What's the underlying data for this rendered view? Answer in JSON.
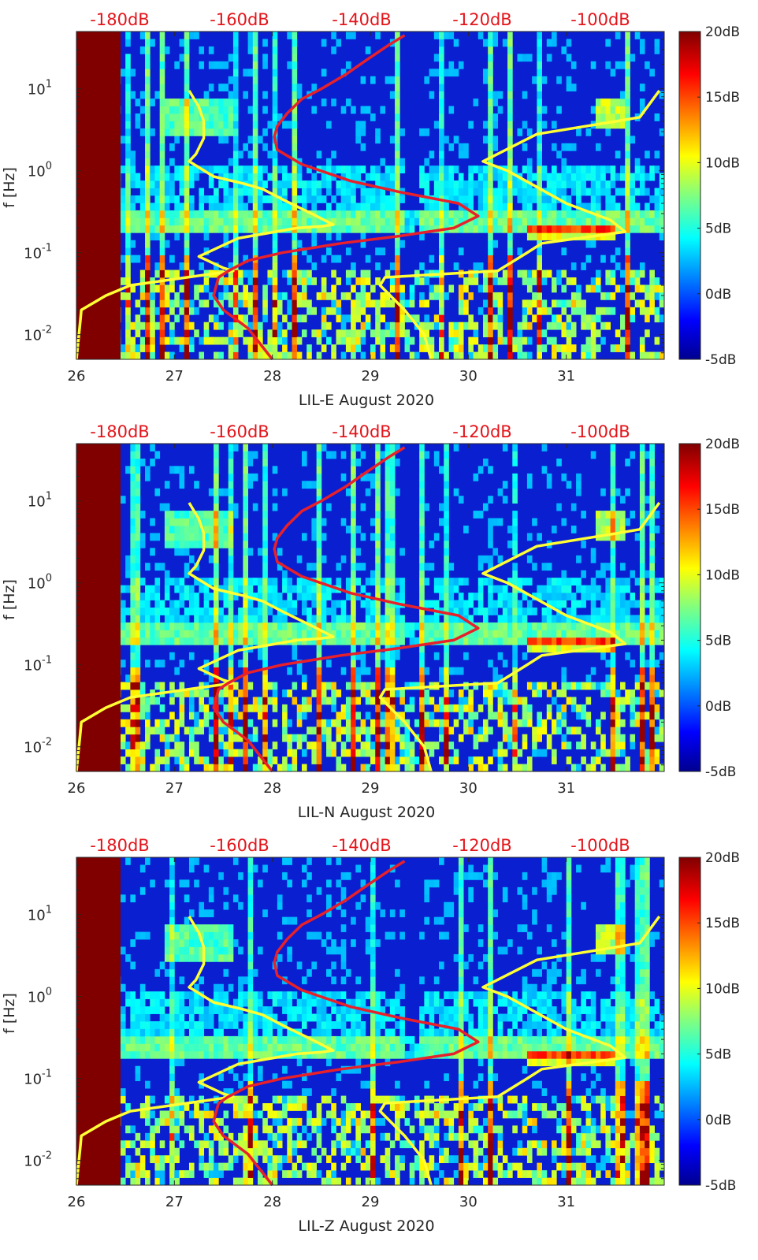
{
  "chart_data": [
    {
      "type": "heatmap",
      "title": "",
      "xlabel": "LIL-E August 2020",
      "ylabel": "f [Hz]",
      "x_ticks": [
        26,
        27,
        28,
        29,
        30,
        31
      ],
      "xlim": [
        26,
        32
      ],
      "ylim": [
        0.005,
        50
      ],
      "y_scale": "log",
      "y_ticks": [
        {
          "value": 0.01,
          "base": "10",
          "exp": "-2"
        },
        {
          "value": 0.1,
          "base": "10",
          "exp": "-1"
        },
        {
          "value": 1,
          "base": "10",
          "exp": "0"
        },
        {
          "value": 10,
          "base": "10",
          "exp": "1"
        }
      ],
      "top_ticks": [
        "-180dB",
        "-160dB",
        "-140dB",
        "-120dB",
        "-100dB"
      ],
      "top_tick_values": [
        -180,
        -160,
        -140,
        -120,
        -100
      ],
      "colorbar": {
        "labels": [
          "-5dB",
          "0dB",
          "5dB",
          "10dB",
          "15dB",
          "20dB"
        ],
        "range": [
          -5,
          20
        ]
      },
      "series": [
        {
          "color": "#ffff33",
          "points": [
            [
              26.0,
              0.005
            ],
            [
              26.04,
              0.015
            ],
            [
              26.05,
              0.02
            ],
            [
              26.3,
              0.03
            ],
            [
              26.55,
              0.04
            ],
            [
              27.6,
              0.06
            ],
            [
              27.5,
              0.065
            ],
            [
              27.25,
              0.09
            ],
            [
              27.65,
              0.15
            ],
            [
              28.25,
              0.2
            ],
            [
              28.5,
              0.21
            ],
            [
              28.62,
              0.22
            ],
            [
              28.4,
              0.3
            ],
            [
              28.1,
              0.45
            ],
            [
              27.9,
              0.6
            ],
            [
              27.7,
              0.7
            ],
            [
              27.4,
              0.85
            ],
            [
              27.15,
              1.3
            ],
            [
              27.22,
              1.6
            ],
            [
              27.3,
              2.5
            ],
            [
              27.3,
              4
            ],
            [
              27.25,
              6
            ],
            [
              27.15,
              9.5
            ]
          ]
        },
        {
          "color": "#ffff33",
          "points": [
            [
              29.62,
              0.005
            ],
            [
              29.55,
              0.01
            ],
            [
              29.35,
              0.02
            ],
            [
              29.1,
              0.04
            ],
            [
              29.15,
              0.05
            ],
            [
              30.3,
              0.06
            ],
            [
              30.6,
              0.1
            ],
            [
              30.75,
              0.13
            ],
            [
              31.6,
              0.18
            ],
            [
              31.45,
              0.25
            ],
            [
              31.0,
              0.4
            ],
            [
              30.4,
              1.0
            ],
            [
              30.15,
              1.3
            ],
            [
              30.7,
              2.8
            ],
            [
              31.5,
              4
            ],
            [
              31.75,
              4.5
            ],
            [
              31.95,
              9.5
            ]
          ]
        },
        {
          "color": "#e8202a",
          "points": [
            [
              28.0,
              0.005
            ],
            [
              27.75,
              0.012
            ],
            [
              27.5,
              0.02
            ],
            [
              27.4,
              0.03
            ],
            [
              27.45,
              0.05
            ],
            [
              27.55,
              0.06
            ],
            [
              27.75,
              0.08
            ],
            [
              28.1,
              0.1
            ],
            [
              28.7,
              0.13
            ],
            [
              29.3,
              0.16
            ],
            [
              29.85,
              0.2
            ],
            [
              30.1,
              0.28
            ],
            [
              29.9,
              0.4
            ],
            [
              29.3,
              0.55
            ],
            [
              28.8,
              0.75
            ],
            [
              28.3,
              1.2
            ],
            [
              28.05,
              1.8
            ],
            [
              28.02,
              2.6
            ],
            [
              28.05,
              3.5
            ],
            [
              28.15,
              5
            ],
            [
              28.3,
              7.5
            ],
            [
              28.5,
              10
            ],
            [
              28.75,
              15
            ],
            [
              28.95,
              22
            ],
            [
              29.2,
              35
            ],
            [
              29.35,
              45
            ]
          ]
        }
      ]
    },
    {
      "type": "heatmap",
      "title": "",
      "xlabel": "LIL-N August 2020",
      "ylabel": "f [Hz]",
      "x_ticks": [
        26,
        27,
        28,
        29,
        30,
        31
      ],
      "xlim": [
        26,
        32
      ],
      "ylim": [
        0.005,
        50
      ],
      "y_scale": "log",
      "y_ticks": [
        {
          "value": 0.01,
          "base": "10",
          "exp": "-2"
        },
        {
          "value": 0.1,
          "base": "10",
          "exp": "-1"
        },
        {
          "value": 1,
          "base": "10",
          "exp": "0"
        },
        {
          "value": 10,
          "base": "10",
          "exp": "1"
        }
      ],
      "top_ticks": [
        "-180dB",
        "-160dB",
        "-140dB",
        "-120dB",
        "-100dB"
      ],
      "top_tick_values": [
        -180,
        -160,
        -140,
        -120,
        -100
      ],
      "colorbar": {
        "labels": [
          "-5dB",
          "0dB",
          "5dB",
          "10dB",
          "15dB",
          "20dB"
        ],
        "range": [
          -5,
          20
        ]
      },
      "series": [
        {
          "color": "#ffff33",
          "points": [
            [
              26.0,
              0.005
            ],
            [
              26.04,
              0.015
            ],
            [
              26.05,
              0.02
            ],
            [
              26.3,
              0.03
            ],
            [
              26.55,
              0.04
            ],
            [
              27.6,
              0.06
            ],
            [
              27.5,
              0.065
            ],
            [
              27.25,
              0.09
            ],
            [
              27.65,
              0.15
            ],
            [
              28.25,
              0.2
            ],
            [
              28.5,
              0.21
            ],
            [
              28.62,
              0.22
            ],
            [
              28.4,
              0.3
            ],
            [
              28.1,
              0.45
            ],
            [
              27.9,
              0.6
            ],
            [
              27.7,
              0.7
            ],
            [
              27.4,
              0.85
            ],
            [
              27.15,
              1.3
            ],
            [
              27.22,
              1.6
            ],
            [
              27.3,
              2.5
            ],
            [
              27.3,
              4
            ],
            [
              27.25,
              6
            ],
            [
              27.15,
              9.5
            ]
          ]
        },
        {
          "color": "#ffff33",
          "points": [
            [
              29.62,
              0.005
            ],
            [
              29.55,
              0.01
            ],
            [
              29.35,
              0.02
            ],
            [
              29.1,
              0.04
            ],
            [
              29.15,
              0.05
            ],
            [
              30.3,
              0.06
            ],
            [
              30.6,
              0.1
            ],
            [
              30.75,
              0.13
            ],
            [
              31.6,
              0.18
            ],
            [
              31.45,
              0.25
            ],
            [
              31.0,
              0.4
            ],
            [
              30.4,
              1.0
            ],
            [
              30.15,
              1.3
            ],
            [
              30.7,
              2.8
            ],
            [
              31.5,
              4
            ],
            [
              31.75,
              4.5
            ],
            [
              31.95,
              9.5
            ]
          ]
        },
        {
          "color": "#e8202a",
          "points": [
            [
              28.0,
              0.005
            ],
            [
              27.75,
              0.012
            ],
            [
              27.5,
              0.02
            ],
            [
              27.4,
              0.03
            ],
            [
              27.45,
              0.05
            ],
            [
              27.55,
              0.06
            ],
            [
              27.75,
              0.08
            ],
            [
              28.1,
              0.1
            ],
            [
              28.7,
              0.13
            ],
            [
              29.3,
              0.16
            ],
            [
              29.85,
              0.2
            ],
            [
              30.1,
              0.28
            ],
            [
              29.9,
              0.4
            ],
            [
              29.3,
              0.55
            ],
            [
              28.8,
              0.75
            ],
            [
              28.3,
              1.2
            ],
            [
              28.05,
              1.8
            ],
            [
              28.02,
              2.6
            ],
            [
              28.05,
              3.5
            ],
            [
              28.15,
              5
            ],
            [
              28.3,
              7.5
            ],
            [
              28.5,
              10
            ],
            [
              28.75,
              15
            ],
            [
              28.95,
              22
            ],
            [
              29.2,
              35
            ],
            [
              29.35,
              45
            ]
          ]
        }
      ]
    },
    {
      "type": "heatmap",
      "title": "",
      "xlabel": "LIL-Z August 2020",
      "ylabel": "f [Hz]",
      "x_ticks": [
        26,
        27,
        28,
        29,
        30,
        31
      ],
      "xlim": [
        26,
        32
      ],
      "ylim": [
        0.005,
        50
      ],
      "y_scale": "log",
      "y_ticks": [
        {
          "value": 0.01,
          "base": "10",
          "exp": "-2"
        },
        {
          "value": 0.1,
          "base": "10",
          "exp": "-1"
        },
        {
          "value": 1,
          "base": "10",
          "exp": "0"
        },
        {
          "value": 10,
          "base": "10",
          "exp": "1"
        }
      ],
      "top_ticks": [
        "-180dB",
        "-160dB",
        "-140dB",
        "-120dB",
        "-100dB"
      ],
      "top_tick_values": [
        -180,
        -160,
        -140,
        -120,
        -100
      ],
      "colorbar": {
        "labels": [
          "-5dB",
          "0dB",
          "5dB",
          "10dB",
          "15dB",
          "20dB"
        ],
        "range": [
          -5,
          20
        ]
      },
      "series": [
        {
          "color": "#ffff33",
          "points": [
            [
              26.0,
              0.005
            ],
            [
              26.04,
              0.015
            ],
            [
              26.05,
              0.02
            ],
            [
              26.3,
              0.03
            ],
            [
              26.55,
              0.04
            ],
            [
              27.6,
              0.06
            ],
            [
              27.5,
              0.065
            ],
            [
              27.25,
              0.09
            ],
            [
              27.65,
              0.15
            ],
            [
              28.25,
              0.2
            ],
            [
              28.5,
              0.21
            ],
            [
              28.62,
              0.22
            ],
            [
              28.4,
              0.3
            ],
            [
              28.1,
              0.45
            ],
            [
              27.9,
              0.6
            ],
            [
              27.7,
              0.7
            ],
            [
              27.4,
              0.85
            ],
            [
              27.15,
              1.3
            ],
            [
              27.22,
              1.6
            ],
            [
              27.3,
              2.5
            ],
            [
              27.3,
              4
            ],
            [
              27.25,
              6
            ],
            [
              27.15,
              9.5
            ]
          ]
        },
        {
          "color": "#ffff33",
          "points": [
            [
              29.62,
              0.005
            ],
            [
              29.55,
              0.01
            ],
            [
              29.35,
              0.02
            ],
            [
              29.1,
              0.04
            ],
            [
              29.15,
              0.05
            ],
            [
              30.3,
              0.06
            ],
            [
              30.6,
              0.1
            ],
            [
              30.75,
              0.13
            ],
            [
              31.6,
              0.18
            ],
            [
              31.45,
              0.25
            ],
            [
              31.0,
              0.4
            ],
            [
              30.4,
              1.0
            ],
            [
              30.15,
              1.3
            ],
            [
              30.7,
              2.8
            ],
            [
              31.5,
              4
            ],
            [
              31.75,
              4.5
            ],
            [
              31.95,
              9.5
            ]
          ]
        },
        {
          "color": "#e8202a",
          "points": [
            [
              28.0,
              0.005
            ],
            [
              27.75,
              0.012
            ],
            [
              27.5,
              0.02
            ],
            [
              27.4,
              0.03
            ],
            [
              27.45,
              0.05
            ],
            [
              27.55,
              0.06
            ],
            [
              27.75,
              0.08
            ],
            [
              28.1,
              0.1
            ],
            [
              28.7,
              0.13
            ],
            [
              29.3,
              0.16
            ],
            [
              29.85,
              0.2
            ],
            [
              30.1,
              0.28
            ],
            [
              29.9,
              0.4
            ],
            [
              29.3,
              0.55
            ],
            [
              28.8,
              0.75
            ],
            [
              28.3,
              1.2
            ],
            [
              28.05,
              1.8
            ],
            [
              28.02,
              2.6
            ],
            [
              28.05,
              3.5
            ],
            [
              28.15,
              5
            ],
            [
              28.3,
              7.5
            ],
            [
              28.5,
              10
            ],
            [
              28.75,
              15
            ],
            [
              28.95,
              22
            ],
            [
              29.2,
              35
            ],
            [
              29.35,
              45
            ]
          ]
        }
      ]
    }
  ]
}
